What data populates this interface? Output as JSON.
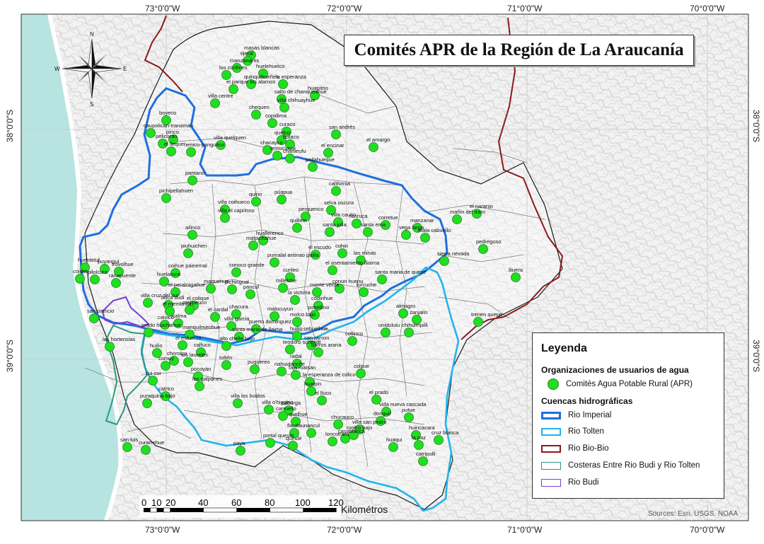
{
  "title": "Comités APR de la Región de La Araucanía",
  "coords": {
    "lon": [
      "73°0'0\"W",
      "72°0'0\"W",
      "71°0'0\"W",
      "70°0'0\"W"
    ],
    "lat": [
      "38°0'0\"S",
      "39°0'0\"S"
    ]
  },
  "compass": {
    "n": "N",
    "s": "S",
    "e": "E",
    "w": "W"
  },
  "legend": {
    "title": "Leyenda",
    "section_org": "Organizaciones de usuarios de agua",
    "apr_label": "Comités Agua Potable Rural (APR)",
    "apr_color": "#1fe01f",
    "section_basins": "Cuencas hidrográficas",
    "basins": [
      {
        "label": "Rio Imperial",
        "color": "#1e6fe0"
      },
      {
        "label": "Rio Tolten",
        "color": "#22b4ee"
      },
      {
        "label": "Rio Bio-Bio",
        "color": "#8b1a1a"
      },
      {
        "label": "Costeras Entre Rio Budi y Rio Tolten",
        "color": "#2a9a80"
      },
      {
        "label": "Rio Budi",
        "color": "#7a3fd0"
      }
    ]
  },
  "scale": {
    "ticks": [
      "0",
      "10",
      "20",
      "40",
      "60",
      "80",
      "100",
      "120"
    ],
    "units": "Kilométros"
  },
  "sources": "Sources: Esri, USGS, NOAA",
  "places": [
    "masas blancas",
    "tijeral",
    "manzanares",
    "huelehueico",
    "los confines",
    "quinquihueñes",
    "la esperanza",
    "el parque los alamos",
    "huapitrio",
    "salto de chanqueahue",
    "villa chihuayhue",
    "villa centre",
    "chequen",
    "copidima",
    "boyeco",
    "curaco",
    "san andrés",
    "caupolican-tranamán",
    "quelco",
    "el amargo",
    "pinco",
    "butaco",
    "pelicoran",
    "el lleque",
    "villa quelquen",
    "chacayco",
    "henico-panguilco",
    "temucuicui",
    "el encinar",
    "chanleufu",
    "pailahueque",
    "pantano",
    "california",
    "pichipellahuen",
    "quino",
    "púapua",
    "villa coihueco",
    "selva oscura",
    "villa el caprinno",
    "perquenco",
    "villa cautin",
    "rariruca",
    "corretue",
    "manzanar",
    "mañin del traro",
    "el naranjo",
    "ailinco",
    "quillem",
    "santa julia",
    "santa ema",
    "vega larga",
    "mala cabuello",
    "pedregoso",
    "malpichahue",
    "huallerenco",
    "piuhuichen",
    "el escudo",
    "cohin",
    "las minas",
    "sierra nevada",
    "huenteluf",
    "puyangui",
    "trovolhue",
    "pumalal antinao pailla",
    "el asentamiento lliaima",
    "coihue painemal",
    "conoco grande",
    "curileo",
    "santa maria de quepe",
    "lliuera",
    "coidet",
    "pilolcura",
    "ranapuente",
    "huelacura",
    "el peralragañue",
    "maquehue",
    "pichingual",
    "pancul",
    "millelche",
    "monte verde",
    "conun huenu",
    "lurcuche",
    "codinhue",
    "la victoria",
    "san patricio",
    "villa cruz del sur",
    "boca budi",
    "el colique",
    "almagro",
    "zanjalin",
    "el membrillo",
    "melipeuco",
    "el cardal",
    "chacura",
    "malocuyun",
    "potrellino",
    "trenen quepe",
    "caivico",
    "icalma",
    "molco bajo",
    "unidoluiu",
    "prado huichahue",
    "villa garcia",
    "puerto dominguez",
    "chihuimpilli",
    "manquilmenhue",
    "santa maria de llaima",
    "huilio-rehuelhue",
    "collinco",
    "san ramon",
    "las hortensias",
    "el esfuerzo",
    "alto chelle bajo",
    "huilio",
    "calfuco",
    "teodoro schmidt",
    "barros arana",
    "radal",
    "choroico",
    "los laureles",
    "comuy",
    "toltén",
    "pocoyán",
    "los galpones",
    "nahuidanche",
    "faja maisan",
    "puquereo",
    "colpue",
    "cui cui",
    "la esperanza de colico",
    "huaipin",
    "catrico",
    "puraquina bajo",
    "villa los boldos",
    "villa o'higgins",
    "el lluco",
    "el prado",
    "vida nueva cascada",
    "caburga",
    "carruello",
    "chucauco",
    "donguil",
    "putue",
    "quelhue",
    "villa san pedro",
    "flautlau",
    "nancul",
    "casablanca",
    "molco bajo",
    "loncotraro",
    "huincacara",
    "cruz blanca",
    "san luis",
    "curarrehue",
    "portal queule",
    "queule",
    "paya",
    "huaqui",
    "la paz",
    "catripulli",
    "palguin bajo",
    "rinconada"
  ]
}
